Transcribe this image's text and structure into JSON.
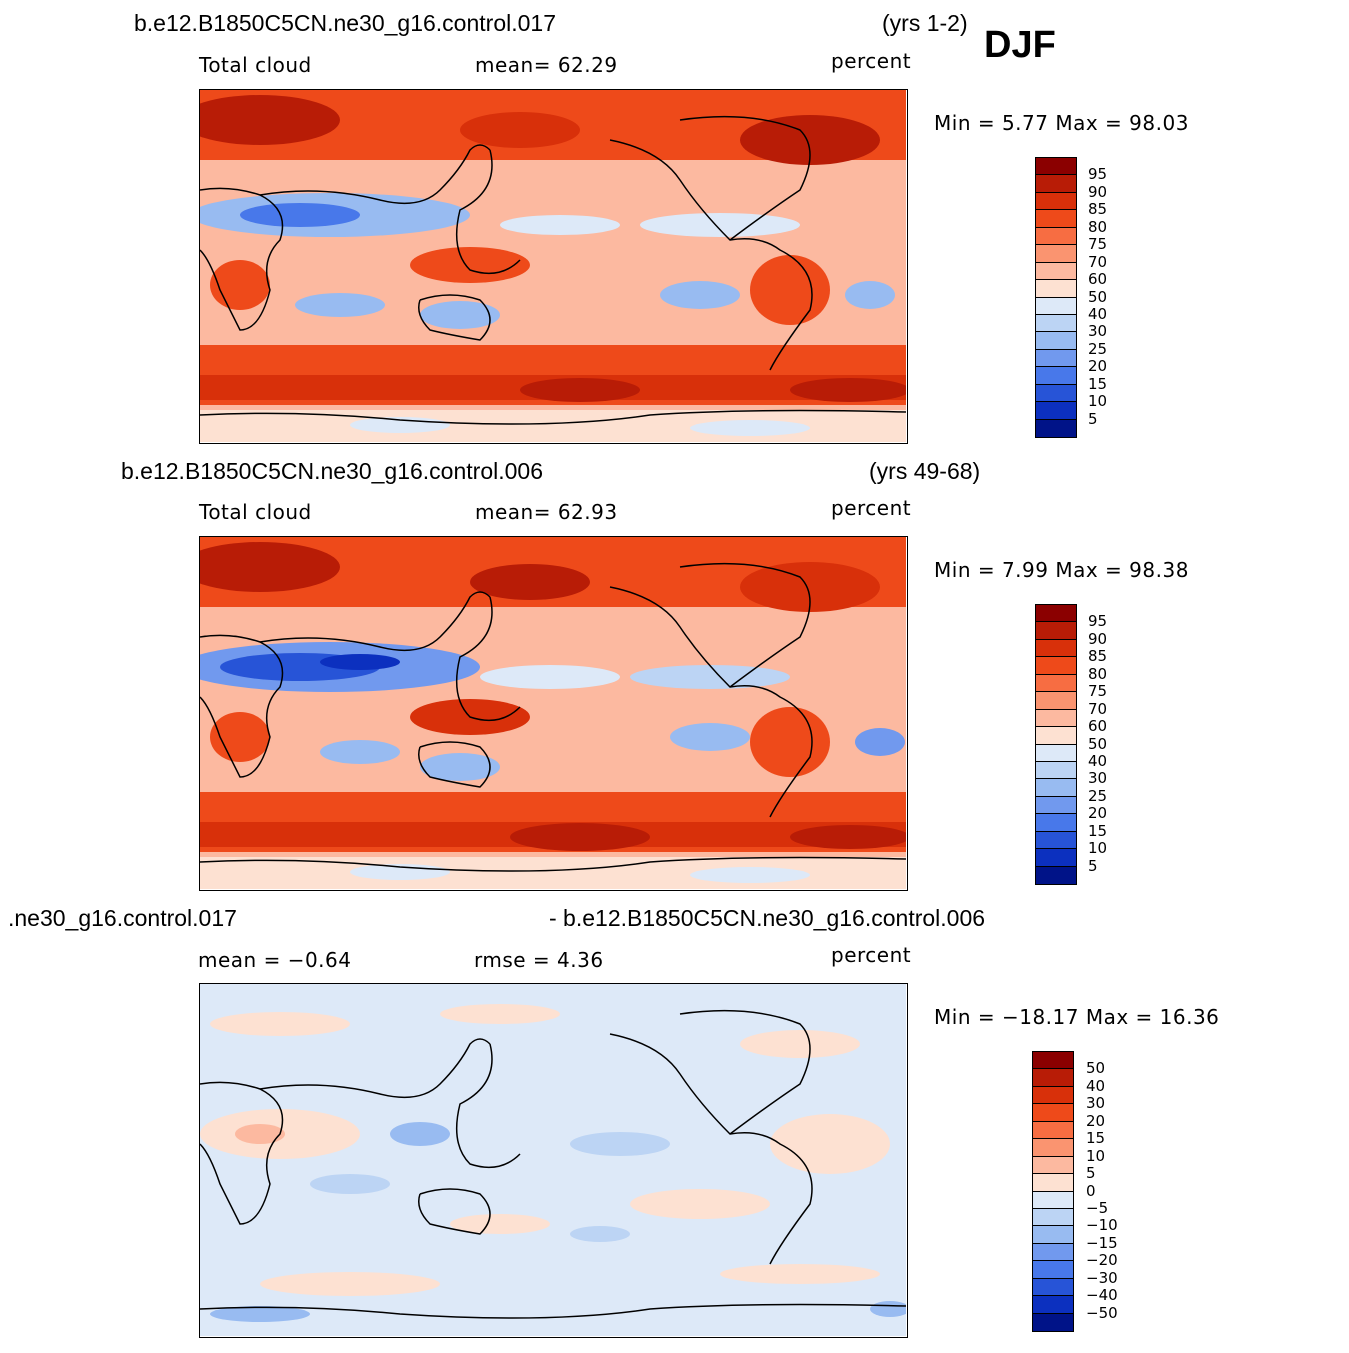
{
  "season": "DJF",
  "panels": [
    {
      "case": "b.e12.B1850C5CN.ne30_g16.control.017",
      "years": "(yrs 1-2)",
      "variable": "Total cloud",
      "stat1": "mean=   62.29",
      "units": "percent",
      "minmax": "Min =    5.77  Max =   98.03"
    },
    {
      "case": "b.e12.B1850C5CN.ne30_g16.control.006",
      "years": "(yrs 49-68)",
      "variable": "Total cloud",
      "stat1": "mean=   62.93",
      "units": "percent",
      "minmax": "Min =    7.99  Max =   98.38"
    },
    {
      "case_left": ".ne30_g16.control.017",
      "case_right": "- b.e12.B1850C5CN.ne30_g16.control.006",
      "stat1": "mean =   −0.64",
      "stat2": "rmse =    4.36",
      "units": "percent",
      "minmax": "Min = −18.17  Max =   16.36"
    }
  ],
  "legend_abs": {
    "levels": [
      "95",
      "90",
      "85",
      "80",
      "75",
      "70",
      "60",
      "50",
      "40",
      "30",
      "25",
      "20",
      "15",
      "10",
      "5"
    ],
    "colors": [
      "#8b0000",
      "#b81c06",
      "#d8300a",
      "#ee4a1a",
      "#f76d42",
      "#fa9470",
      "#fcb9a0",
      "#fde1d2",
      "#dde9f8",
      "#bcd4f4",
      "#98bbf1",
      "#7199ee",
      "#4878ea",
      "#2754d7",
      "#0c30bf",
      "#001388"
    ]
  },
  "legend_diff": {
    "levels": [
      "50",
      "40",
      "30",
      "20",
      "15",
      "10",
      "5",
      "0",
      "−5",
      "−10",
      "−15",
      "−20",
      "−30",
      "−40",
      "−50"
    ],
    "colors": [
      "#8b0000",
      "#b81c06",
      "#d8300a",
      "#ee4a1a",
      "#f76d42",
      "#fa9470",
      "#fcb9a0",
      "#fde1d2",
      "#dde9f8",
      "#bcd4f4",
      "#98bbf1",
      "#7199ee",
      "#4878ea",
      "#2754d7",
      "#0c30bf",
      "#001388"
    ]
  }
}
